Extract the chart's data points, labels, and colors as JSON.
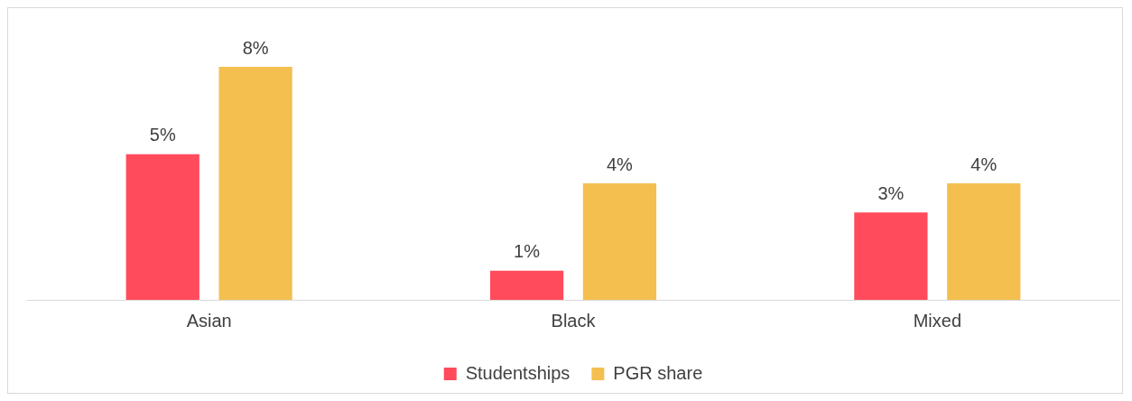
{
  "chart_data": {
    "type": "bar",
    "categories": [
      "Asian",
      "Black",
      "Mixed"
    ],
    "series": [
      {
        "name": "Studentships",
        "color": "#ff4b5c",
        "values": [
          5,
          1,
          3
        ],
        "value_labels": [
          "5%",
          "1%",
          "3%"
        ]
      },
      {
        "name": "PGR share",
        "color": "#f4bf4f",
        "values": [
          8,
          4,
          4
        ],
        "value_labels": [
          "8%",
          "4%",
          "4%"
        ]
      }
    ],
    "legend": "bottom",
    "grid": false
  }
}
